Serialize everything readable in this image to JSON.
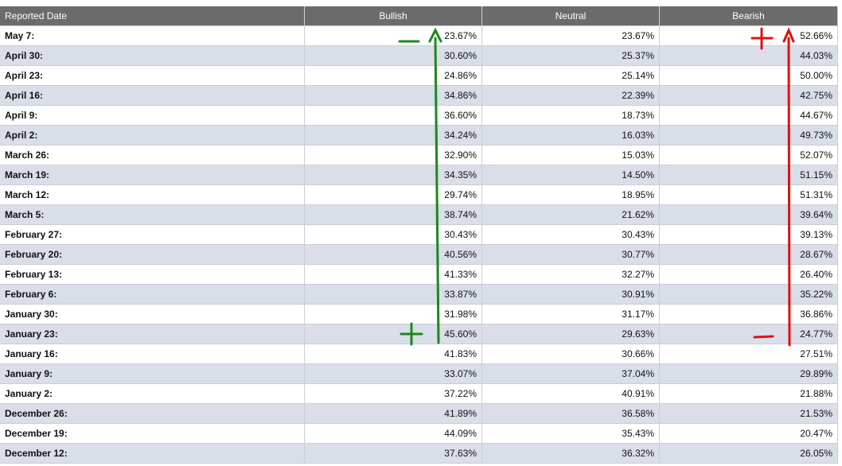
{
  "table": {
    "header": [
      "Reported Date",
      "Bullish",
      "Neutral",
      "Bearish"
    ],
    "rows": [
      [
        "May 7:",
        "23.67%",
        "23.67%",
        "52.66%"
      ],
      [
        "April 30:",
        "30.60%",
        "25.37%",
        "44.03%"
      ],
      [
        "April 23:",
        "24.86%",
        "25.14%",
        "50.00%"
      ],
      [
        "April 16:",
        "34.86%",
        "22.39%",
        "42.75%"
      ],
      [
        "April 9:",
        "36.60%",
        "18.73%",
        "44.67%"
      ],
      [
        "April 2:",
        "34.24%",
        "16.03%",
        "49.73%"
      ],
      [
        "March 26:",
        "32.90%",
        "15.03%",
        "52.07%"
      ],
      [
        "March 19:",
        "34.35%",
        "14.50%",
        "51.15%"
      ],
      [
        "March 12:",
        "29.74%",
        "18.95%",
        "51.31%"
      ],
      [
        "March 5:",
        "38.74%",
        "21.62%",
        "39.64%"
      ],
      [
        "February 27:",
        "30.43%",
        "30.43%",
        "39.13%"
      ],
      [
        "February 20:",
        "40.56%",
        "30.77%",
        "28.67%"
      ],
      [
        "February 13:",
        "41.33%",
        "32.27%",
        "26.40%"
      ],
      [
        "February 6:",
        "33.87%",
        "30.91%",
        "35.22%"
      ],
      [
        "January 30:",
        "31.98%",
        "31.17%",
        "36.86%"
      ],
      [
        "January 23:",
        "45.60%",
        "29.63%",
        "24.77%"
      ],
      [
        "January 16:",
        "41.83%",
        "30.66%",
        "27.51%"
      ],
      [
        "January 9:",
        "33.07%",
        "37.04%",
        "29.89%"
      ],
      [
        "January 2:",
        "37.22%",
        "40.91%",
        "21.88%"
      ],
      [
        "December 26:",
        "41.89%",
        "36.58%",
        "21.53%"
      ],
      [
        "December 19:",
        "44.09%",
        "35.43%",
        "20.47%"
      ],
      [
        "December 12:",
        "37.63%",
        "36.32%",
        "26.05%"
      ]
    ]
  }
}
